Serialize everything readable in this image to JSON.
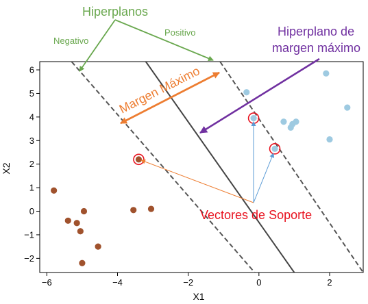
{
  "chart_data": {
    "type": "scatter",
    "xlabel": "X1",
    "ylabel": "X2",
    "xlim": [
      -6.2,
      2.95
    ],
    "ylim": [
      -2.6,
      6.35
    ],
    "xticks": [
      -6,
      -4,
      -2,
      0,
      2
    ],
    "yticks": [
      -2,
      -1,
      0,
      1,
      2,
      3,
      4,
      5,
      6
    ],
    "xtick_labels": [
      "−6",
      "−4",
      "−2",
      "0",
      "2"
    ],
    "ytick_labels": [
      "−2",
      "−1",
      "0",
      "1",
      "2",
      "3",
      "4",
      "5",
      "6"
    ],
    "grid": false,
    "series": [
      {
        "color": "#a0522d",
        "points": [
          [
            -5.8,
            0.88
          ],
          [
            -5.4,
            -0.4
          ],
          [
            -5.15,
            -0.5
          ],
          [
            -5.05,
            -0.85
          ],
          [
            -4.95,
            0.0
          ],
          [
            -5.0,
            -2.2
          ],
          [
            -4.55,
            -1.5
          ],
          [
            -3.55,
            0.05
          ],
          [
            -3.05,
            0.1
          ],
          [
            -3.4,
            2.2
          ]
        ]
      },
      {
        "color": "#9ecae1",
        "points": [
          [
            -0.35,
            5.05
          ],
          [
            -0.15,
            3.95
          ],
          [
            0.45,
            2.65
          ],
          [
            0.7,
            3.8
          ],
          [
            0.9,
            3.55
          ],
          [
            0.95,
            3.7
          ],
          [
            1.05,
            3.8
          ],
          [
            1.9,
            5.85
          ],
          [
            2.0,
            3.05
          ],
          [
            2.5,
            4.4
          ]
        ]
      }
    ],
    "support_vectors": [
      [
        -3.4,
        2.2
      ],
      [
        -0.15,
        3.95
      ],
      [
        0.45,
        2.65
      ]
    ],
    "lines": [
      {
        "kind": "dashed",
        "from": [
          -5.3,
          6.35
        ],
        "to": [
          -0.12,
          -2.6
        ]
      },
      {
        "kind": "solid",
        "from": [
          -3.2,
          6.35
        ],
        "to": [
          1.0,
          -2.6
        ]
      },
      {
        "kind": "dashed",
        "from": [
          -1.1,
          6.35
        ],
        "to": [
          2.95,
          -2.6
        ]
      }
    ]
  },
  "annotations": {
    "hiperplanos": "Hiperplanos",
    "negativo": "Negativo",
    "positivo": "Positivo",
    "margen_maximo": "Margen Máximo",
    "hiperplano_line1": "Hiperplano de",
    "hiperplano_line2": "margen máximo",
    "vectores_soporte": "Vectores de Soporte"
  },
  "colors": {
    "green": "#6aa84f",
    "purple": "#7030a0",
    "orange": "#ed7d31",
    "red": "#e8121f",
    "arrow_blue": "#5b9bd5"
  }
}
